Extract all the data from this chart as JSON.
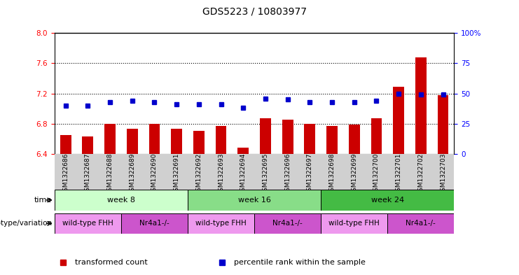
{
  "title": "GDS5223 / 10803977",
  "samples": [
    "GSM1322686",
    "GSM1322687",
    "GSM1322688",
    "GSM1322689",
    "GSM1322690",
    "GSM1322691",
    "GSM1322692",
    "GSM1322693",
    "GSM1322694",
    "GSM1322695",
    "GSM1322696",
    "GSM1322697",
    "GSM1322698",
    "GSM1322699",
    "GSM1322700",
    "GSM1322701",
    "GSM1322702",
    "GSM1322703"
  ],
  "bar_values": [
    6.65,
    6.63,
    6.8,
    6.73,
    6.8,
    6.73,
    6.71,
    6.77,
    6.48,
    6.87,
    6.85,
    6.8,
    6.77,
    6.79,
    6.87,
    7.29,
    7.68,
    7.18
  ],
  "percentile_values": [
    40,
    40,
    43,
    44,
    43,
    41,
    41,
    41,
    38,
    46,
    45,
    43,
    43,
    43,
    44,
    50,
    49,
    49
  ],
  "ylim_left": [
    6.4,
    8.0
  ],
  "ylim_right": [
    0,
    100
  ],
  "yticks_left": [
    6.4,
    6.8,
    7.2,
    7.6,
    8.0
  ],
  "yticks_right": [
    0,
    25,
    50,
    75,
    100
  ],
  "grid_lines": [
    6.8,
    7.2,
    7.6
  ],
  "bar_color": "#cc0000",
  "percentile_color": "#0000cc",
  "bar_width": 0.5,
  "time_groups": [
    {
      "label": "week 8",
      "start": 0,
      "end": 6,
      "color": "#ccffcc"
    },
    {
      "label": "week 16",
      "start": 6,
      "end": 12,
      "color": "#88dd88"
    },
    {
      "label": "week 24",
      "start": 12,
      "end": 18,
      "color": "#44bb44"
    }
  ],
  "genotype_groups": [
    {
      "label": "wild-type FHH",
      "start": 0,
      "end": 3,
      "color": "#ee99ee"
    },
    {
      "label": "Nr4a1-/-",
      "start": 3,
      "end": 6,
      "color": "#cc55cc"
    },
    {
      "label": "wild-type FHH",
      "start": 6,
      "end": 9,
      "color": "#ee99ee"
    },
    {
      "label": "Nr4a1-/-",
      "start": 9,
      "end": 12,
      "color": "#cc55cc"
    },
    {
      "label": "wild-type FHH",
      "start": 12,
      "end": 15,
      "color": "#ee99ee"
    },
    {
      "label": "Nr4a1-/-",
      "start": 15,
      "end": 18,
      "color": "#cc55cc"
    }
  ],
  "legend_items": [
    {
      "label": "transformed count",
      "color": "#cc0000"
    },
    {
      "label": "percentile rank within the sample",
      "color": "#0000cc"
    }
  ],
  "xtick_bg_color": "#d0d0d0",
  "plot_bg_color": "#ffffff"
}
